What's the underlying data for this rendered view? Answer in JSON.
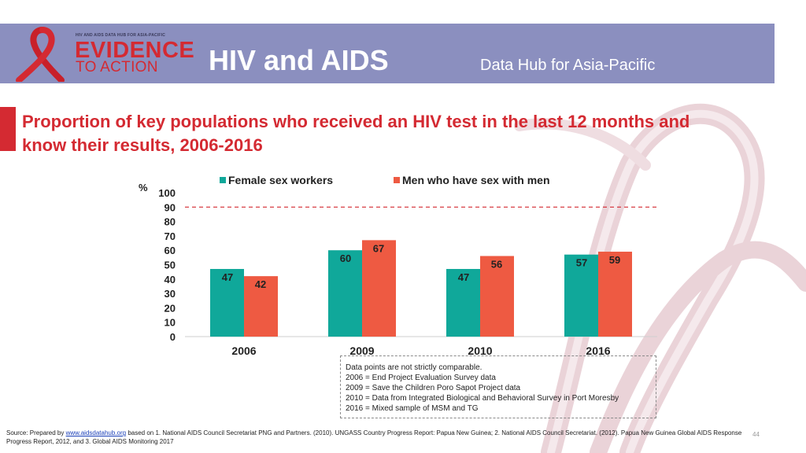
{
  "header": {
    "logo_small": "HIV AND AIDS DATA HUB FOR ASIA-PACIFIC",
    "logo_line1": "EVIDENCE",
    "logo_line2": "TO ACTION",
    "title": "HIV and AIDS",
    "subtitle": "Data Hub for Asia-Pacific"
  },
  "page_title": "Proportion of key populations who received an HIV test in the last 12 months and know their results, 2006-2016",
  "colors": {
    "header_bg": "#8b8fbf",
    "accent": "#d42a32",
    "series1": "#10a89a",
    "series2": "#ee5a42"
  },
  "chart_data": {
    "type": "bar",
    "title": "",
    "ylabel": "%",
    "xlabel": "",
    "ylim": [
      0,
      100
    ],
    "yticks": [
      "0",
      "10",
      "20",
      "30",
      "40",
      "50",
      "60",
      "70",
      "80",
      "90",
      "100"
    ],
    "categories": [
      "2006",
      "2009",
      "2010",
      "2016"
    ],
    "series": [
      {
        "name": "Female sex workers",
        "values": [
          47,
          60,
          47,
          57
        ]
      },
      {
        "name": "Men who have sex with men",
        "values": [
          42,
          67,
          56,
          59
        ]
      }
    ],
    "target_line": 90,
    "legend_position": "top"
  },
  "note": {
    "lines": [
      "Data points are not strictly comparable.",
      "2006 = End Project Evaluation Survey data",
      "2009 = Save the Children Poro Sapot Project data",
      "2010 = Data from Integrated Biological and Behavioral Survey in Port Moresby",
      "2016 = Mixed sample of MSM and TG"
    ]
  },
  "footer": {
    "prefix": "Source: Prepared by",
    "link": "www.aidsdatahub.org",
    "text": " based on 1. National AIDS Council Secretariat PNG and Partners. (2010). UNGASS Country Progress Report: Papua New Guinea; 2. National AIDS Council Secretariat. (2012). Papua New Guinea Global AIDS Response Progress Report, 2012, and 3. Global AIDS Monitoring 2017",
    "page_number": "44"
  }
}
